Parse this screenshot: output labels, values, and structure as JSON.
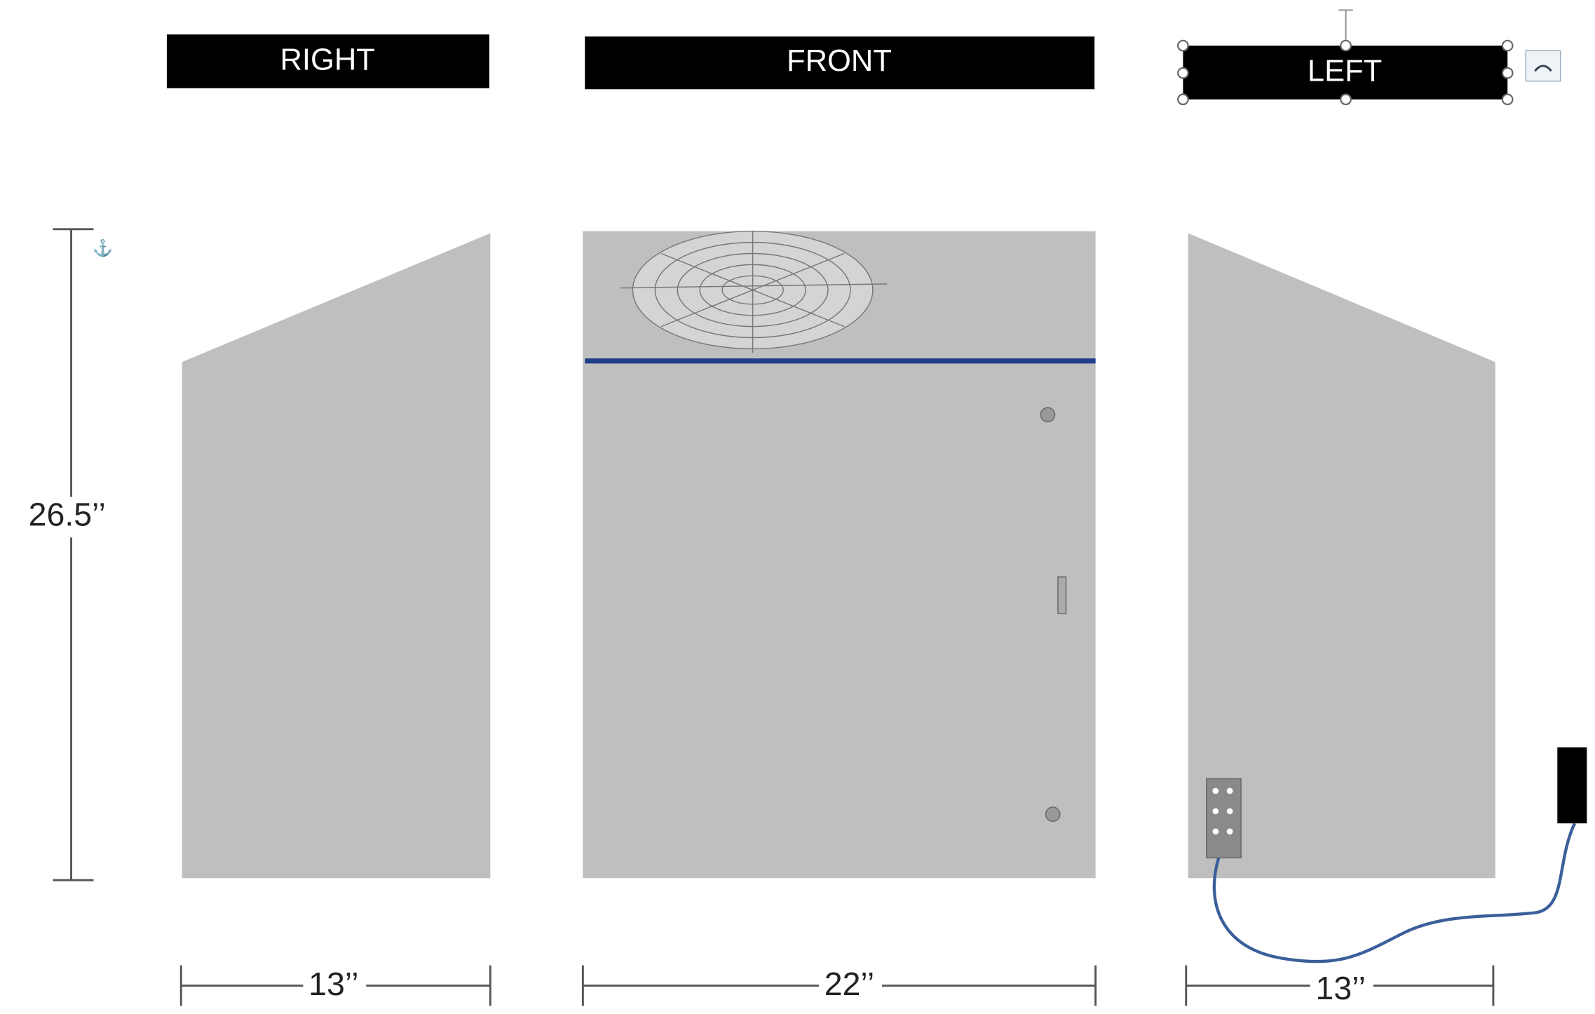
{
  "views": [
    {
      "label": "RIGHT",
      "width": "13’’"
    },
    {
      "label": "FRONT",
      "width": "22’’"
    },
    {
      "label": "LEFT",
      "width": "13’’"
    }
  ],
  "height": "26.5’’"
}
